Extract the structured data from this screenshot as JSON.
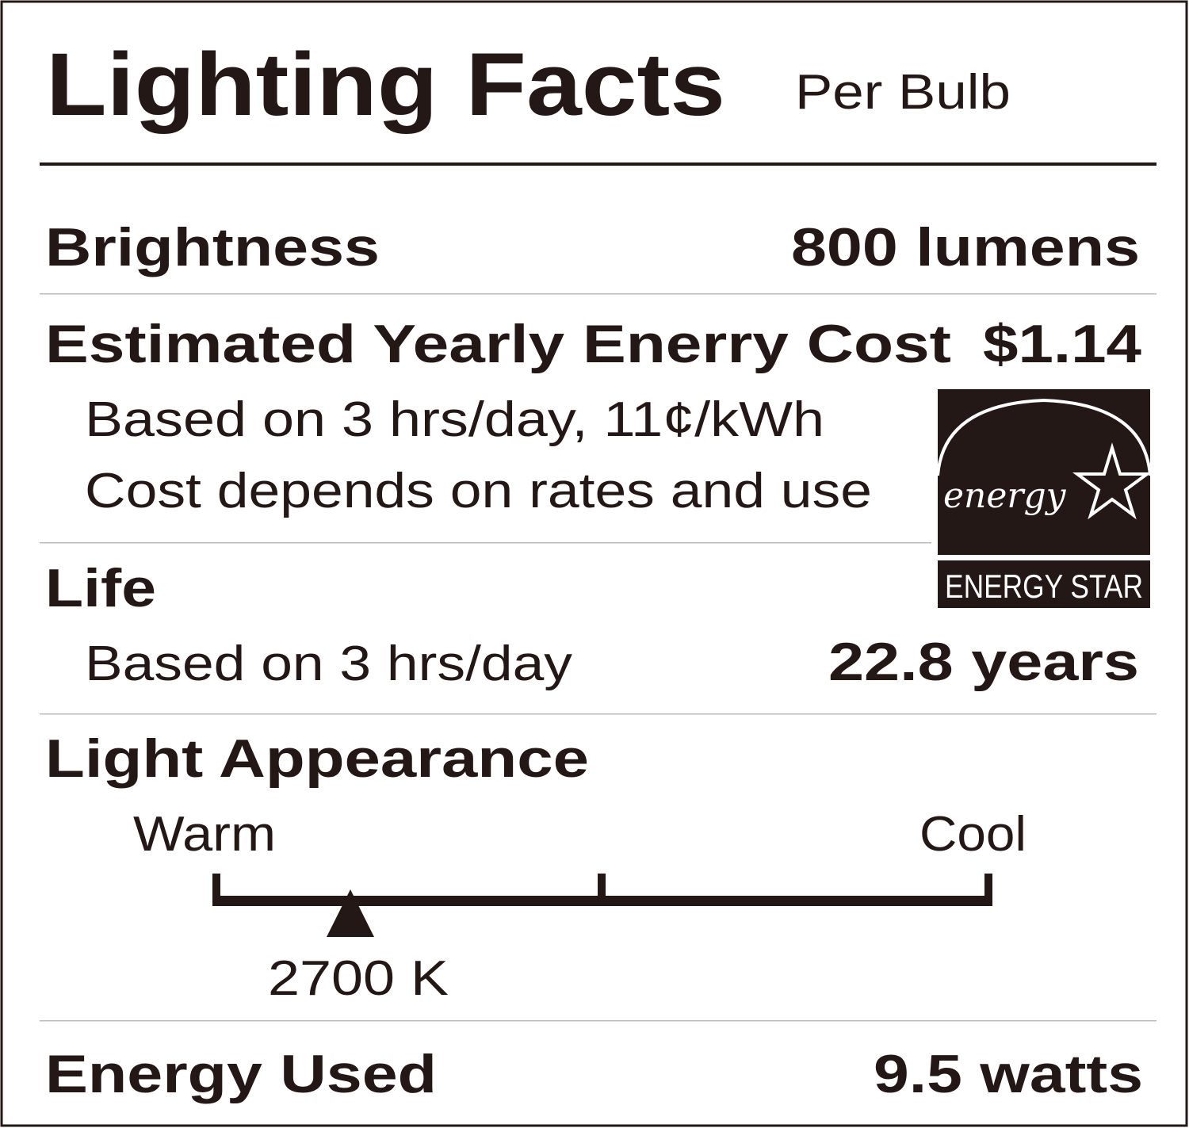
{
  "header": {
    "title": "Lighting Facts",
    "subtitle": "Per Bulb"
  },
  "brightness": {
    "label": "Brightness",
    "value": "800 lumens"
  },
  "cost": {
    "label": "Estimated Yearly Enerry Cost",
    "value": "$1.14",
    "notes": [
      "Based on 3 hrs/day, 11¢/kWh",
      "Cost depends on rates and use"
    ]
  },
  "life": {
    "label": "Life",
    "note": "Based on 3 hrs/day",
    "value": "22.8 years"
  },
  "appearance": {
    "label": "Light Appearance",
    "warm": "Warm",
    "cool": "Cool",
    "marker": "2700 K"
  },
  "energy_used": {
    "label": "Energy Used",
    "value": "9.5 watts"
  },
  "logo": {
    "script": "energy",
    "name": "ENERGY STAR"
  }
}
